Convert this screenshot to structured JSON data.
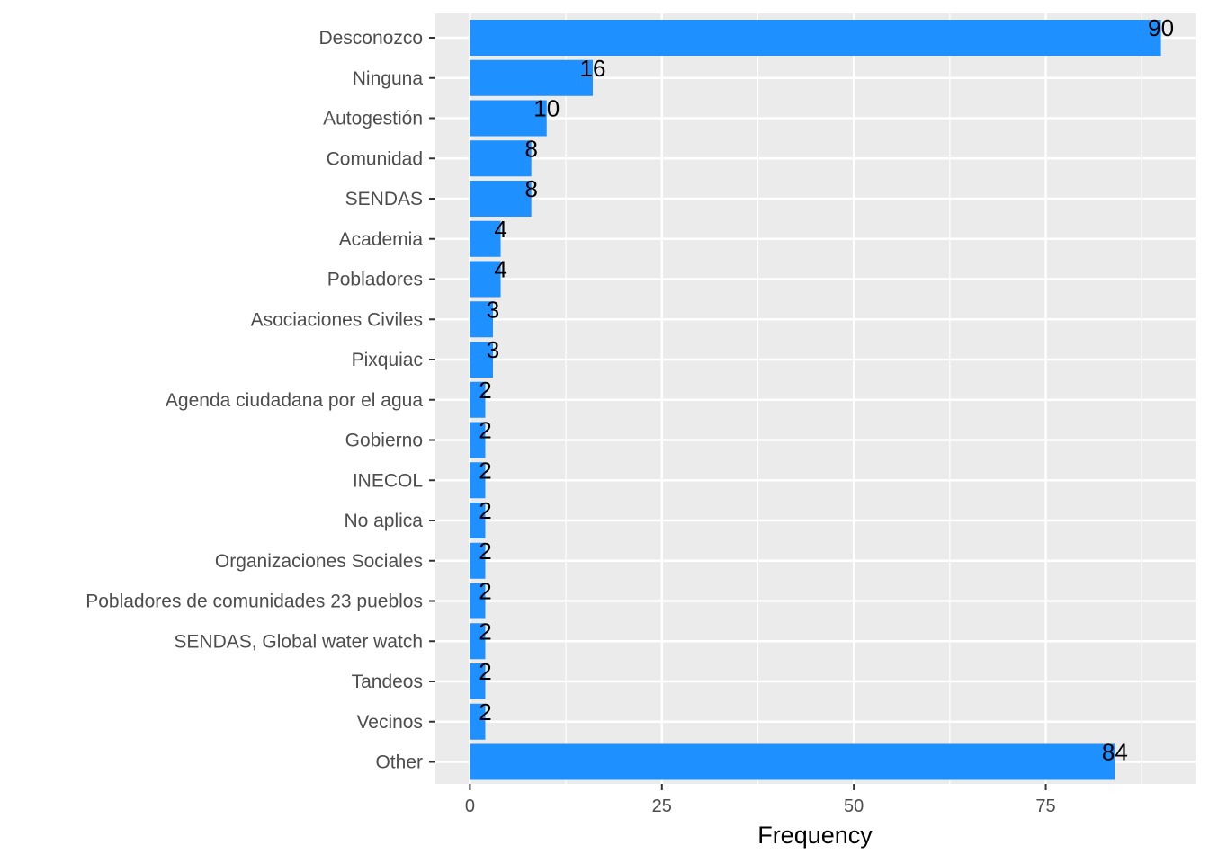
{
  "chart_data": {
    "type": "bar",
    "orientation": "horizontal",
    "categories": [
      "Desconozco",
      "Ninguna",
      "Autogestión",
      "Comunidad",
      "SENDAS",
      "Academia",
      "Pobladores",
      "Asociaciones Civiles",
      "Pixquiac",
      "Agenda ciudadana por el agua",
      "Gobierno",
      "INECOL",
      "No aplica",
      "Organizaciones Sociales",
      "Pobladores de comunidades 23 pueblos",
      "SENDAS, Global water watch",
      "Tandeos",
      "Vecinos",
      "Other"
    ],
    "values": [
      90,
      16,
      10,
      8,
      8,
      4,
      4,
      3,
      3,
      2,
      2,
      2,
      2,
      2,
      2,
      2,
      2,
      2,
      84
    ],
    "xlabel": "Frequency",
    "xticks": [
      0,
      25,
      50,
      75
    ],
    "xlim": [
      -4.5,
      94.5
    ],
    "grid": true,
    "colors": {
      "bar": "#1E90FF",
      "panel": "#EBEBEB",
      "grid": "#FFFFFF"
    }
  }
}
